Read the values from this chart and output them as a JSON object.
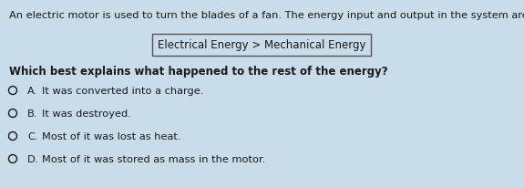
{
  "background_color": "#c8dcea",
  "intro_text": "An electric motor is used to turn the blades of a fan. The energy input and output in the system are shown in the diagram.",
  "diagram_label": "Electrical Energy > Mechanical Energy",
  "question": "Which best explains what happened to the rest of the energy?",
  "options": [
    {
      "letter": "A.",
      "text": "It was converted into a charge."
    },
    {
      "letter": "B.",
      "text": "It was destroyed."
    },
    {
      "letter": "C.",
      "text": "Most of it was lost as heat."
    },
    {
      "letter": "D.",
      "text": "Most of it was stored as mass in the motor."
    }
  ],
  "intro_fontsize": 8.2,
  "question_fontsize": 8.5,
  "option_fontsize": 8.2,
  "diagram_fontsize": 8.5,
  "text_color": "#1a1a1a",
  "box_edgecolor": "#555555",
  "box_facecolor": "#c8dcea",
  "figwidth": 5.75,
  "figheight": 2.07,
  "dpi": 100
}
